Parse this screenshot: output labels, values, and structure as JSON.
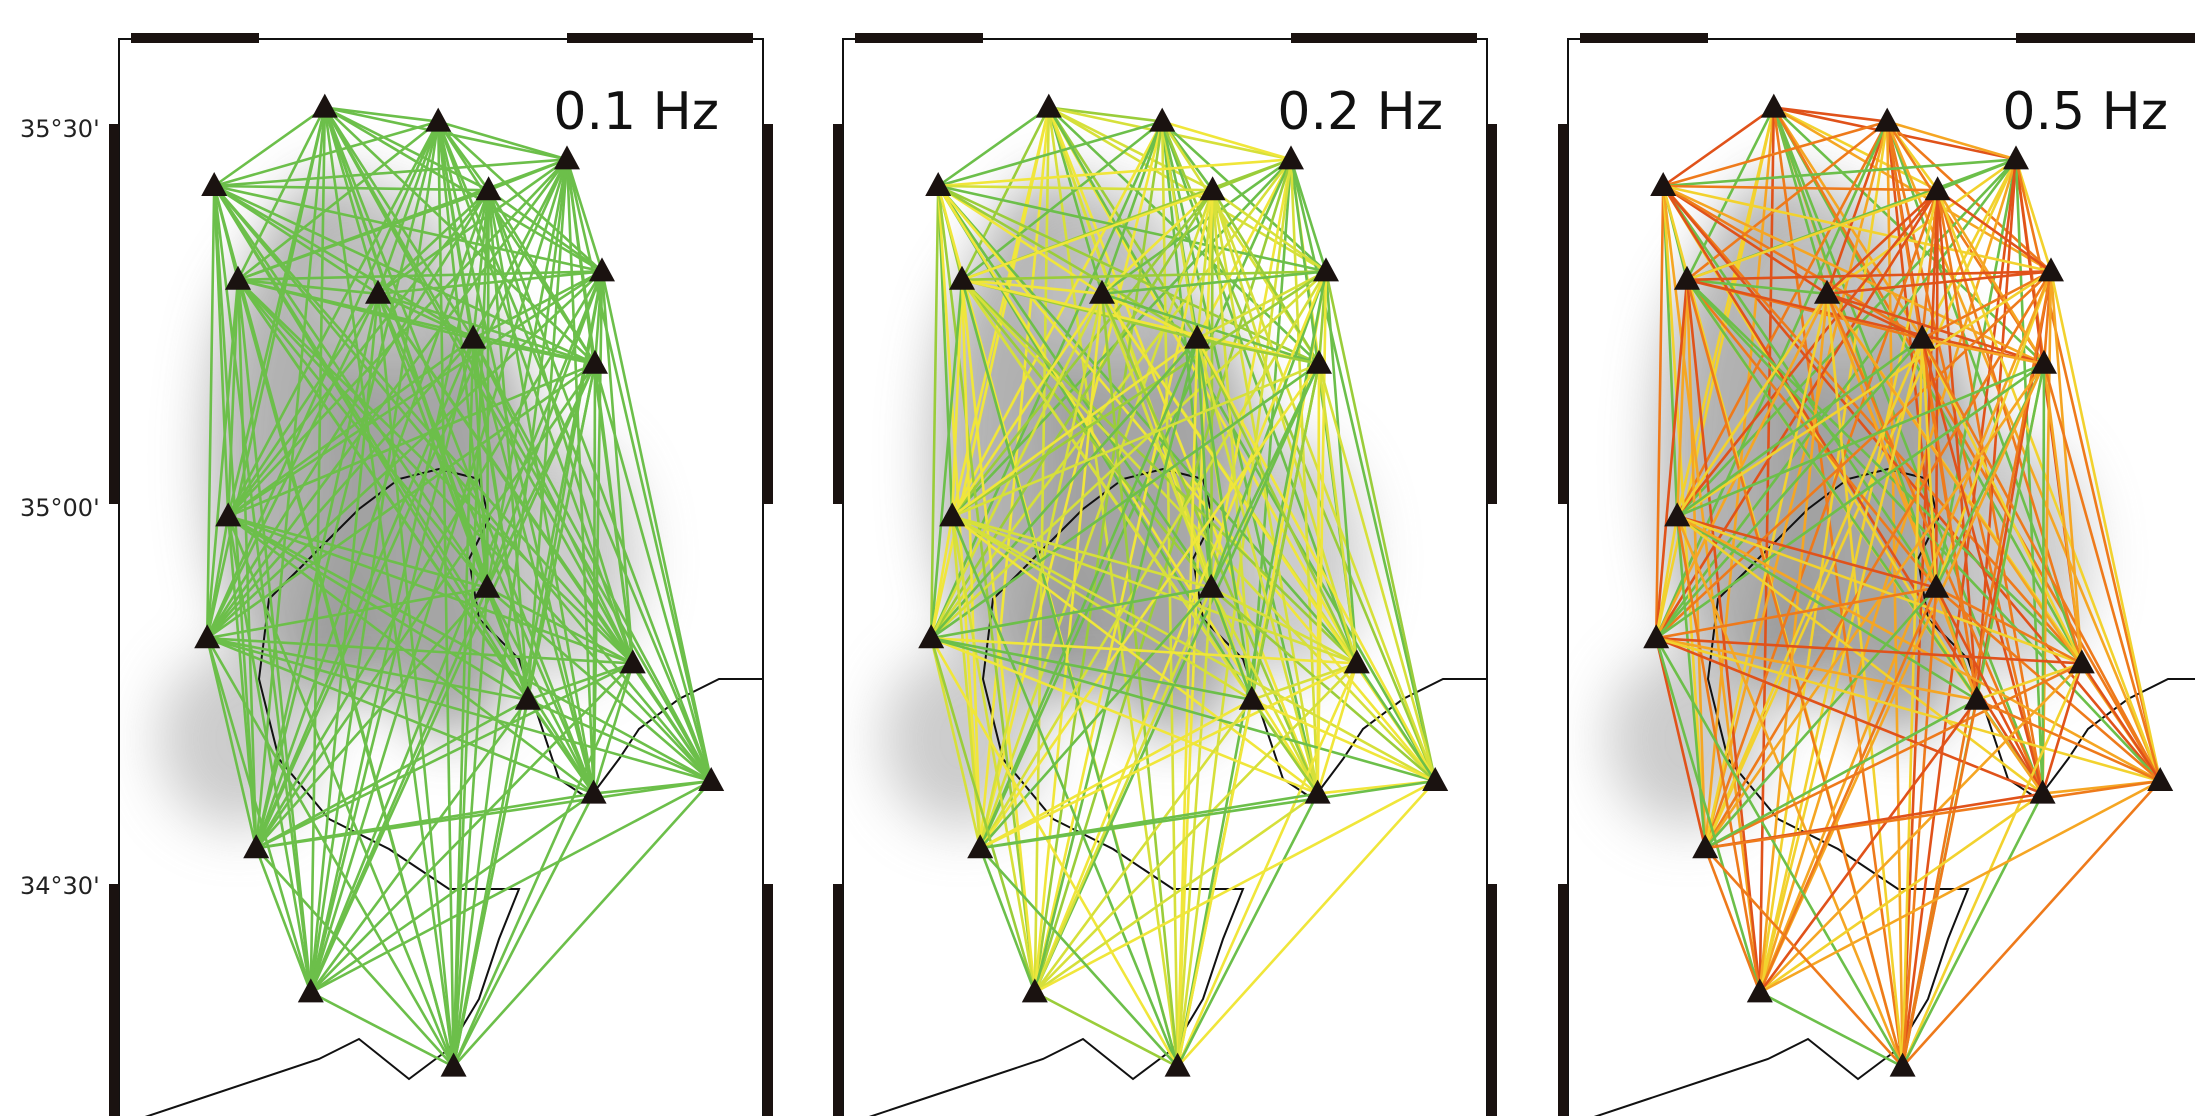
{
  "panels": [
    {
      "label": "0.1 Hz"
    },
    {
      "label": "0.2 Hz"
    },
    {
      "label": "0.5 Hz"
    }
  ],
  "lat_labels": [
    "35°30'",
    "35°00'",
    "34°30'"
  ]
}
